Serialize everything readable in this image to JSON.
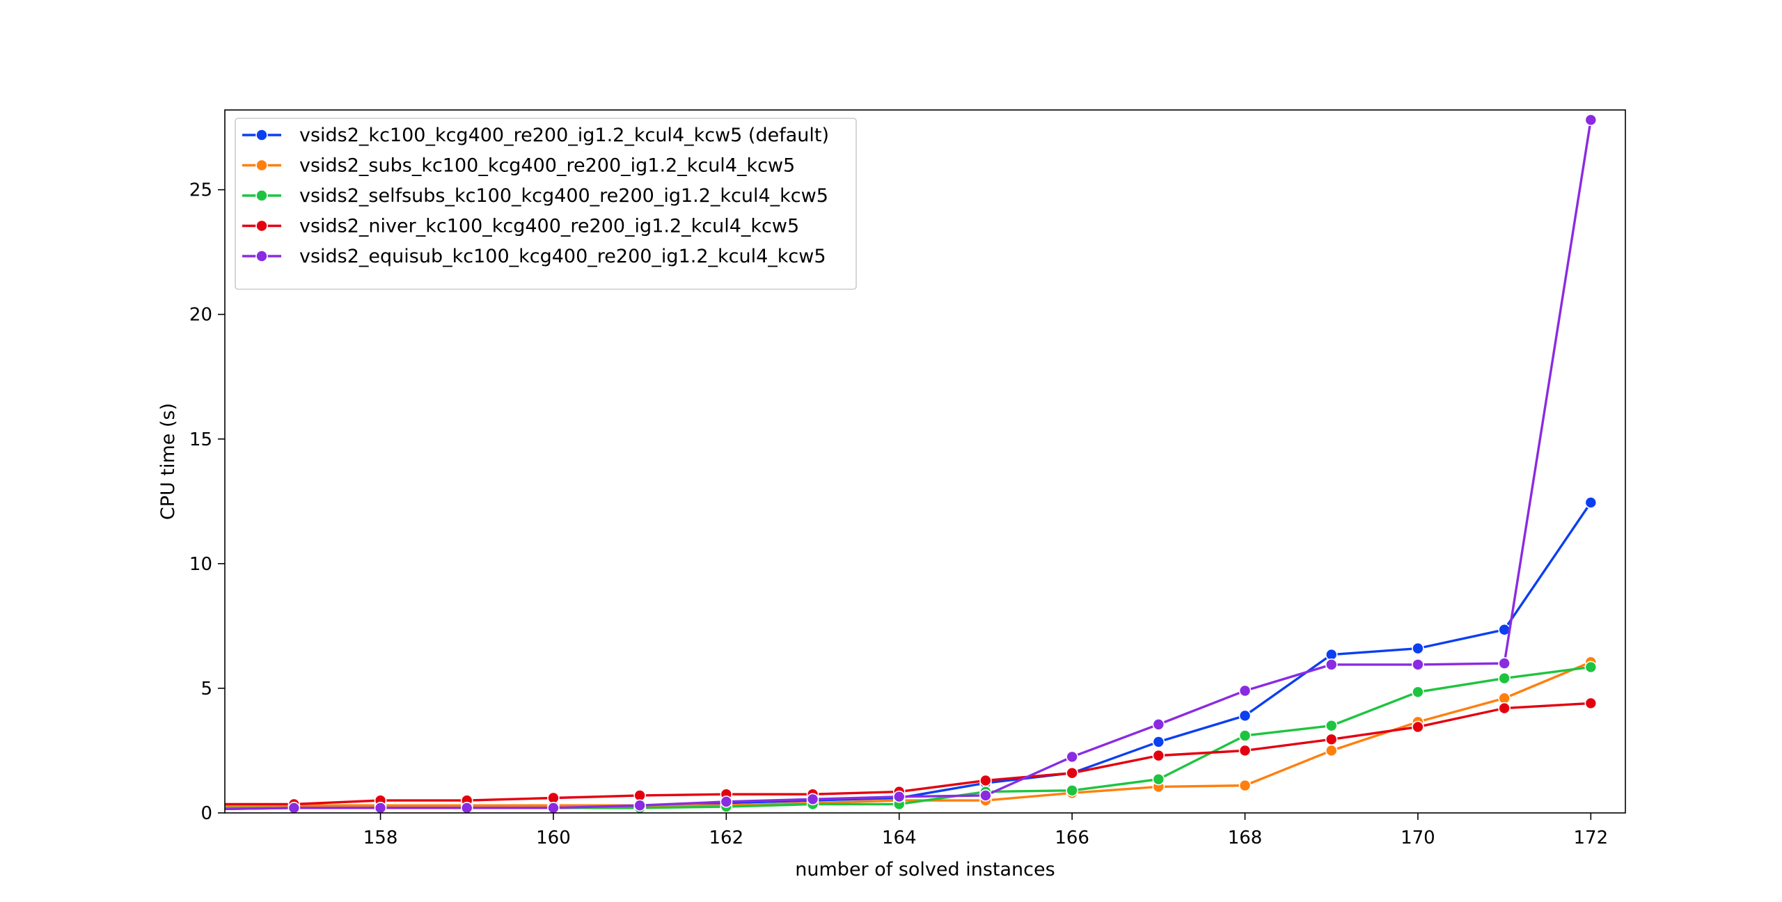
{
  "chart_data": {
    "type": "line",
    "title": "",
    "xlabel": "number of solved instances",
    "ylabel": "CPU time (s)",
    "xlim": [
      156.2,
      172.4
    ],
    "ylim": [
      0,
      28.2
    ],
    "xticks": [
      158,
      160,
      162,
      164,
      166,
      168,
      170,
      172
    ],
    "yticks": [
      0,
      5,
      10,
      15,
      20,
      25
    ],
    "grid": false,
    "legend_position": "top-left",
    "x": [
      156,
      157,
      158,
      159,
      160,
      161,
      162,
      163,
      164,
      165,
      166,
      167,
      168,
      169,
      170,
      171,
      172
    ],
    "series": [
      {
        "name": "vsids2_kc100_kcg400_re200_ig1.2_kcul4_kcw5 (default)",
        "color": "#0b3ff2",
        "values": [
          0.15,
          0.2,
          0.2,
          0.2,
          0.2,
          0.25,
          0.4,
          0.5,
          0.6,
          1.2,
          1.6,
          2.85,
          3.9,
          6.35,
          6.6,
          7.35,
          12.45
        ]
      },
      {
        "name": "vsids2_subs_kc100_kcg400_re200_ig1.2_kcul4_kcw5",
        "color": "#ff7f0e",
        "values": [
          0.3,
          0.3,
          0.3,
          0.3,
          0.3,
          0.3,
          0.3,
          0.4,
          0.5,
          0.5,
          0.8,
          1.05,
          1.1,
          2.5,
          3.65,
          4.6,
          6.05
        ]
      },
      {
        "name": "vsids2_selfsubs_kc100_kcg400_re200_ig1.2_kcul4_kcw5",
        "color": "#1ec440",
        "values": [
          0.2,
          0.2,
          0.2,
          0.2,
          0.2,
          0.2,
          0.25,
          0.35,
          0.35,
          0.85,
          0.9,
          1.35,
          3.1,
          3.5,
          4.85,
          5.4,
          5.85
        ]
      },
      {
        "name": "vsids2_niver_kc100_kcg400_re200_ig1.2_kcul4_kcw5",
        "color": "#e3000f",
        "values": [
          0.35,
          0.35,
          0.5,
          0.5,
          0.6,
          0.7,
          0.75,
          0.75,
          0.85,
          1.3,
          1.6,
          2.3,
          2.5,
          2.95,
          3.45,
          4.2,
          4.4
        ]
      },
      {
        "name": "vsids2_equisub_kc100_kcg400_re200_ig1.2_kcul4_kcw5",
        "color": "#8a2be2",
        "values": [
          0.15,
          0.2,
          0.2,
          0.2,
          0.2,
          0.3,
          0.45,
          0.55,
          0.65,
          0.7,
          2.25,
          3.55,
          4.9,
          5.95,
          5.95,
          6.0,
          27.8
        ]
      }
    ]
  }
}
